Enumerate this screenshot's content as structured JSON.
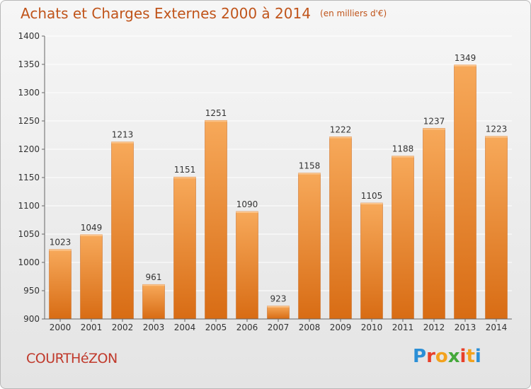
{
  "header": {
    "title": "Achats et Charges Externes 2000 à 2014",
    "unit": "(en milliers d'€)"
  },
  "footer": {
    "location": "COURTHéZON",
    "brand_letters": [
      "P",
      "r",
      "o",
      "x",
      "i",
      "t",
      "i"
    ],
    "brand_colors": [
      "#2b8fd6",
      "#e8402a",
      "#f3a21d",
      "#44a83a",
      "#e8402a",
      "#f3a21d",
      "#2b8fd6"
    ]
  },
  "colors": {
    "bar": "#e8832a",
    "bar_light": "#f7a95a",
    "axis_text": "#333333",
    "grid": "#ffffff"
  },
  "chart_data": {
    "type": "bar",
    "categories": [
      "2000",
      "2001",
      "2002",
      "2003",
      "2004",
      "2005",
      "2006",
      "2007",
      "2008",
      "2009",
      "2010",
      "2011",
      "2012",
      "2013",
      "2014"
    ],
    "values": [
      1023,
      1049,
      1213,
      961,
      1151,
      1251,
      1090,
      923,
      1158,
      1222,
      1105,
      1188,
      1237,
      1349,
      1223
    ],
    "ylim": [
      900,
      1400
    ],
    "yticks": [
      900,
      950,
      1000,
      1050,
      1100,
      1150,
      1200,
      1250,
      1300,
      1350,
      1400
    ],
    "grid": true,
    "data_labels": true
  }
}
